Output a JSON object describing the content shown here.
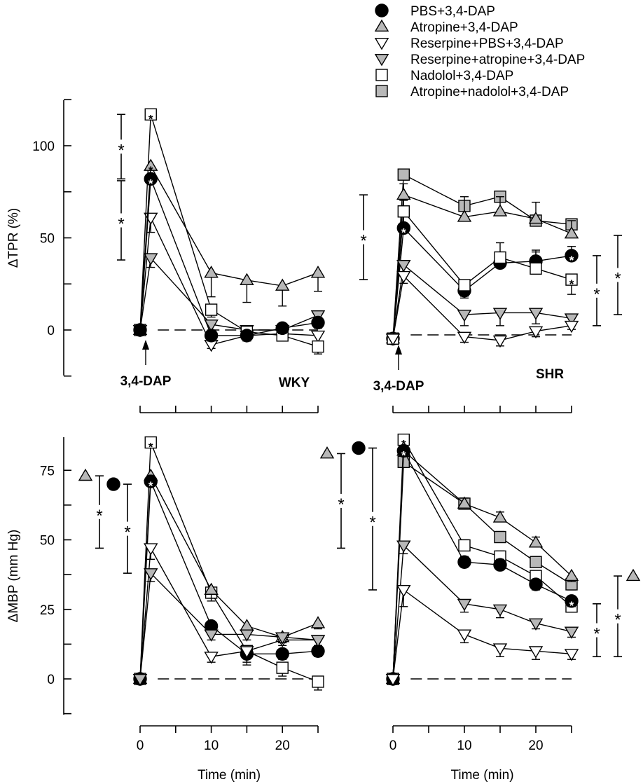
{
  "chart_data": {
    "type": "line",
    "legend": {
      "position": "top-right",
      "entries": [
        {
          "key": "pbs",
          "label": "PBS+3,4-DAP",
          "marker": "circle",
          "fill": "#000000"
        },
        {
          "key": "atropine",
          "label": "Atropine+3,4-DAP",
          "marker": "triangle-up",
          "fill": "#b8b8b8"
        },
        {
          "key": "respbs",
          "label": "Reserpine+PBS+3,4-DAP",
          "marker": "triangle-down",
          "fill": "#ffffff"
        },
        {
          "key": "resatr",
          "label": "Reserpine+atropine+3,4-DAP",
          "marker": "triangle-down",
          "fill": "#b8b8b8"
        },
        {
          "key": "nadolol",
          "label": "Nadolol+3,4-DAP",
          "marker": "square",
          "fill": "#ffffff"
        },
        {
          "key": "atrnad",
          "label": "Atropine+nadolol+3,4-DAP",
          "marker": "square",
          "fill": "#b8b8b8"
        }
      ]
    },
    "x": [
      0,
      1.5,
      10,
      15,
      20,
      25
    ],
    "xlabel": "Time (min)",
    "xticks": [
      "0",
      "10",
      "20"
    ],
    "panels": [
      {
        "id": "tpr-wky",
        "strain": "WKY",
        "marker_label": "3,4-DAP",
        "ylabel": "ΔTPR (%)",
        "ylim": [
          -25,
          125
        ],
        "yticks": [
          "0",
          "50",
          "100"
        ],
        "series": [
          {
            "key": "respbs",
            "values": [
              0,
              61,
              -8,
              -3,
              -2,
              -3
            ],
            "err": [
              0,
              8,
              2,
              2,
              3,
              3
            ]
          },
          {
            "key": "resatr",
            "values": [
              0,
              39,
              3,
              0,
              0,
              8
            ],
            "err": [
              0,
              5,
              3,
              2,
              3,
              4
            ]
          },
          {
            "key": "nadolol",
            "values": [
              0,
              117,
              11,
              -1,
              -3,
              -9
            ],
            "err": [
              0,
              0,
              4,
              2,
              3,
              4
            ]
          },
          {
            "key": "atropine",
            "values": [
              0,
              89,
              31,
              27,
              24,
              31
            ],
            "err": [
              0,
              0,
              13,
              12,
              11,
              10
            ]
          },
          {
            "key": "pbs",
            "values": [
              0,
              82,
              -3,
              -3,
              1,
              4
            ],
            "err": [
              0,
              0,
              3,
              3,
              3,
              3
            ]
          }
        ],
        "significance": [
          {
            "label": "*",
            "range": [
              82,
              117
            ]
          },
          {
            "label": "*",
            "range": [
              38,
              81
            ]
          }
        ]
      },
      {
        "id": "tpr-shr",
        "strain": "SHR",
        "marker_label": "3,4-DAP",
        "ylabel": "",
        "ylim": [
          -25,
          125
        ],
        "yticks": [],
        "series": [
          {
            "key": "atrnad",
            "values": [
              -2,
              87,
              70,
              75,
              62,
              60
            ],
            "err": [
              0,
              0,
              3,
              3,
              3,
              3
            ]
          },
          {
            "key": "atropine",
            "values": [
              -2,
              76,
              64,
              67,
              63,
              55
            ],
            "err": [
              0,
              6,
              11,
              8,
              9,
              7
            ]
          },
          {
            "key": "pbs",
            "values": [
              -2,
              58,
              24,
              39,
              40,
              43
            ],
            "err": [
              0,
              6,
              3,
              6,
              6,
              5
            ]
          },
          {
            "key": "nadolol",
            "values": [
              -2,
              67,
              27,
              42,
              36,
              30
            ],
            "err": [
              0,
              6,
              7,
              8,
              9,
              8
            ]
          },
          {
            "key": "resatr",
            "values": [
              -2,
              38,
              11,
              12,
              12,
              9
            ],
            "err": [
              0,
              6,
              6,
              7,
              6,
              4
            ]
          },
          {
            "key": "respbs",
            "values": [
              -2,
              32,
              -1,
              -3,
              2,
              5
            ],
            "err": [
              0,
              4,
              3,
              3,
              3,
              2
            ]
          }
        ],
        "significance": [
          {
            "label": "*",
            "range": [
              30,
              76
            ],
            "side": "left"
          },
          {
            "label": "*",
            "range": [
              5,
              43
            ],
            "side": "right"
          },
          {
            "label": "*",
            "range": [
              11,
              54
            ],
            "side": "right"
          }
        ]
      },
      {
        "id": "mbp-wky",
        "strain": "WKY",
        "ylabel": "ΔMBP (mm Hg)",
        "ylim": [
          -15,
          88
        ],
        "yticks": [
          "0",
          "25",
          "50",
          "75"
        ],
        "series": [
          {
            "key": "nadolol",
            "values": [
              0,
              85,
              31,
              10,
              4,
              -1
            ],
            "err": [
              0,
              0,
              3,
              4,
              3,
              3
            ]
          },
          {
            "key": "atropine",
            "values": [
              0,
              73,
              32,
              19,
              15,
              20
            ],
            "err": [
              0,
              0,
              3,
              2,
              2,
              2
            ]
          },
          {
            "key": "pbs",
            "values": [
              0,
              71,
              19,
              9,
              9,
              10
            ],
            "err": [
              0,
              0,
              2,
              4,
              2,
              2
            ]
          },
          {
            "key": "respbs",
            "values": [
              0,
              47,
              8,
              10,
              14,
              14
            ],
            "err": [
              0,
              4,
              2,
              2,
              2,
              2
            ]
          },
          {
            "key": "resatr",
            "values": [
              0,
              38,
              16,
              16,
              15,
              14
            ],
            "err": [
              0,
              3,
              2,
              2,
              2,
              2
            ]
          }
        ],
        "significance": [
          {
            "label": "*",
            "range": [
              47,
              73
            ],
            "ref": "atropine"
          },
          {
            "label": "*",
            "range": [
              38,
              70
            ],
            "ref": "pbs"
          }
        ]
      },
      {
        "id": "mbp-shr",
        "strain": "SHR",
        "ylabel": "",
        "ylim": [
          -15,
          88
        ],
        "yticks": [],
        "series": [
          {
            "key": "atrnad",
            "values": [
              0,
              78,
              63,
              51,
              42,
              34
            ],
            "err": [
              0,
              0,
              2,
              2,
              2,
              2
            ]
          },
          {
            "key": "nadolol",
            "values": [
              0,
              86,
              48,
              44,
              37,
              26
            ],
            "err": [
              0,
              0,
              2,
              2,
              2,
              2
            ]
          },
          {
            "key": "atropine",
            "values": [
              0,
              82,
              63,
              58,
              49,
              37
            ],
            "err": [
              0,
              0,
              2,
              2,
              2,
              2
            ]
          },
          {
            "key": "pbs",
            "values": [
              0,
              82,
              42,
              41,
              34,
              28
            ],
            "err": [
              0,
              0,
              2,
              2,
              2,
              2
            ]
          },
          {
            "key": "resatr",
            "values": [
              0,
              48,
              27,
              25,
              20,
              17
            ],
            "err": [
              0,
              3,
              3,
              3,
              2,
              2
            ]
          },
          {
            "key": "respbs",
            "values": [
              0,
              32,
              16,
              11,
              10,
              9
            ],
            "err": [
              0,
              6,
              3,
              3,
              3,
              2
            ]
          }
        ],
        "significance": [
          {
            "label": "*",
            "range": [
              47,
              81
            ],
            "ref": "atropine"
          },
          {
            "label": "*",
            "range": [
              32,
              83
            ],
            "ref": "pbs"
          },
          {
            "label": "*",
            "range": [
              8,
              27
            ],
            "side": "right"
          },
          {
            "label": "*",
            "range": [
              8,
              37
            ],
            "side": "right",
            "ref": "atropine"
          }
        ]
      }
    ]
  }
}
